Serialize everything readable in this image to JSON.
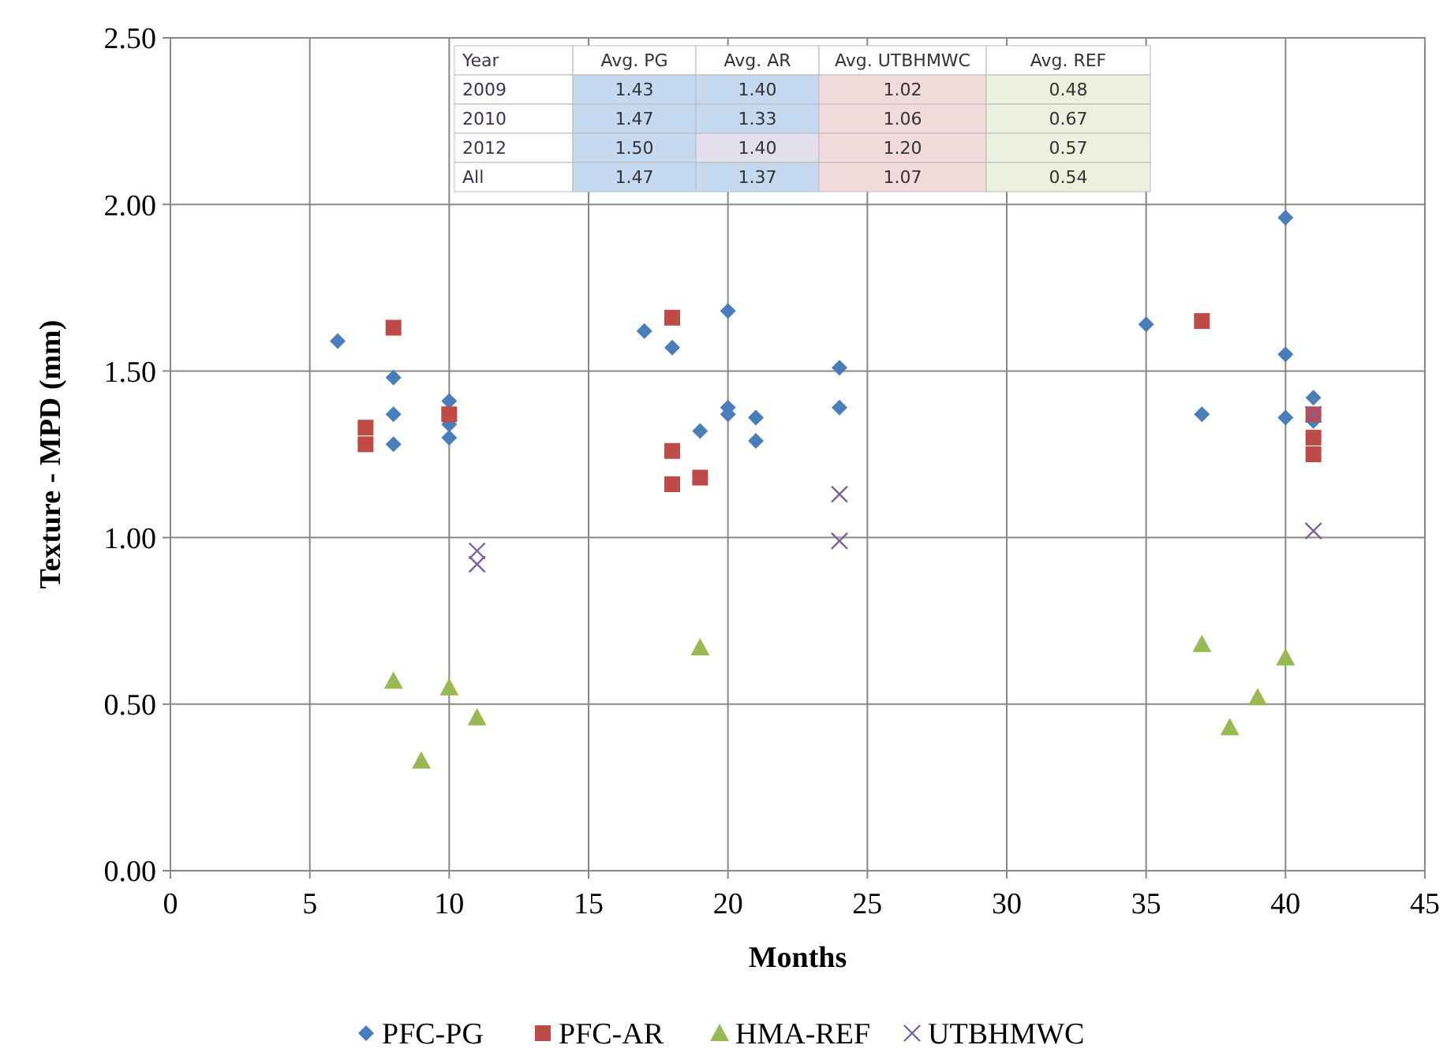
{
  "chart_data": {
    "type": "scatter",
    "xlabel": "Months",
    "ylabel": "Texture - MPD (mm)",
    "xlim": [
      0,
      45
    ],
    "xticks": [
      0,
      5,
      10,
      15,
      20,
      25,
      30,
      35,
      40,
      45
    ],
    "ylim": [
      0,
      2.5
    ],
    "yticks": [
      {
        "value": 0,
        "label": "0.00"
      },
      {
        "value": 0.5,
        "label": "0.50"
      },
      {
        "value": 1,
        "label": "1.00"
      },
      {
        "value": 1.5,
        "label": "1.50"
      },
      {
        "value": 2,
        "label": "2.00"
      },
      {
        "value": 2.5,
        "label": "2.50"
      }
    ],
    "grid": true,
    "legend": "bottom",
    "series": [
      {
        "name": "PFC-PG",
        "color": "#4a7ebb",
        "marker": "diamond",
        "x": [
          6,
          8,
          8,
          8,
          10,
          10,
          10,
          17,
          18,
          19,
          20,
          20,
          20,
          21,
          21,
          24,
          24,
          35,
          37,
          40,
          40,
          40,
          41,
          41
        ],
        "values": [
          1.59,
          1.48,
          1.37,
          1.28,
          1.41,
          1.34,
          1.3,
          1.62,
          1.57,
          1.32,
          1.68,
          1.39,
          1.37,
          1.36,
          1.29,
          1.51,
          1.39,
          1.64,
          1.37,
          1.96,
          1.55,
          1.36,
          1.42,
          1.35
        ]
      },
      {
        "name": "PFC-AR",
        "color": "#be4b48",
        "marker": "square",
        "x": [
          7,
          7,
          8,
          10,
          18,
          18,
          18,
          19,
          37,
          41,
          41,
          41
        ],
        "values": [
          1.33,
          1.28,
          1.63,
          1.37,
          1.66,
          1.26,
          1.16,
          1.18,
          1.65,
          1.37,
          1.3,
          1.25
        ]
      },
      {
        "name": "HMA-REF",
        "color": "#98b954",
        "marker": "triangle",
        "x": [
          8,
          9,
          10,
          11,
          19,
          37,
          38,
          39,
          40
        ],
        "values": [
          0.57,
          0.33,
          0.55,
          0.46,
          0.67,
          0.68,
          0.43,
          0.52,
          0.64
        ]
      },
      {
        "name": "UTBHMWC",
        "color": "#7d60a0",
        "marker": "cross",
        "x": [
          11,
          11,
          24,
          24,
          41,
          41
        ],
        "values": [
          0.96,
          0.92,
          1.13,
          0.99,
          1.37,
          1.02
        ]
      }
    ],
    "annotations": [
      "Year",
      "Avg. PG",
      "Avg. AR",
      "Avg. UTBHMWC",
      "Avg. REF",
      "2009",
      "1.43",
      "1.40",
      "1.02",
      "0.48",
      "2010",
      "1.47",
      "1.33",
      "1.06",
      "0.67",
      "2012",
      "1.50",
      "1.40",
      "1.20",
      "0.57",
      "All",
      "1.47",
      "1.37",
      "1.07",
      "0.54"
    ]
  }
}
